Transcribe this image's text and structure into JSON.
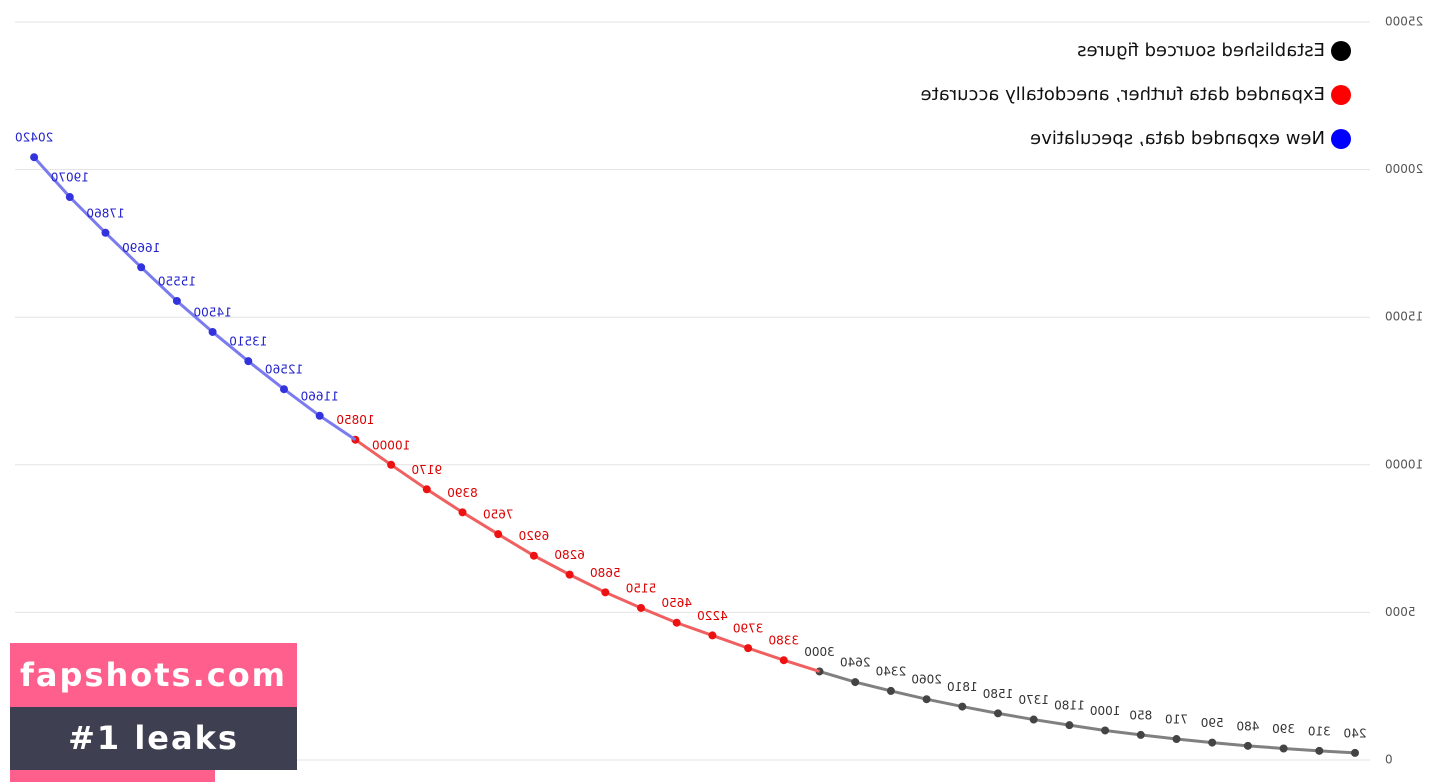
{
  "chart_data": {
    "type": "line",
    "ylim": [
      0,
      25000
    ],
    "yticks": [
      0,
      5000,
      10000,
      15000,
      20000,
      25000
    ],
    "grid": true,
    "series": [
      {
        "name": "Established sourced figures",
        "color": "#808080",
        "point_color": "#444444",
        "label_color": "#333333",
        "values": [
          240,
          310,
          390,
          480,
          590,
          710,
          850,
          1000,
          1180,
          1370,
          1580,
          1810,
          2060,
          2340,
          2640,
          3000,
          null,
          null,
          null,
          null,
          null,
          null,
          null,
          null,
          null,
          null,
          null,
          null,
          null,
          null,
          null,
          null,
          null,
          null,
          null,
          null,
          null,
          null
        ]
      },
      {
        "name": "Expanded data further, anecdotally accurate",
        "color": "#f06060",
        "point_color": "#ee1111",
        "label_color": "#dd0000",
        "values": [
          null,
          null,
          null,
          null,
          null,
          null,
          null,
          null,
          null,
          null,
          null,
          null,
          null,
          null,
          null,
          null,
          3380,
          3790,
          4220,
          4650,
          5150,
          5680,
          6280,
          6920,
          7650,
          8390,
          9170,
          10000,
          10850,
          null,
          null,
          null,
          null,
          null,
          null,
          null,
          null,
          null
        ]
      },
      {
        "name": "New expanded data, speculative",
        "color": "#7b7bf0",
        "point_color": "#3333dd",
        "label_color": "#2222cc",
        "values": [
          null,
          null,
          null,
          null,
          null,
          null,
          null,
          null,
          null,
          null,
          null,
          null,
          null,
          null,
          null,
          null,
          null,
          null,
          null,
          null,
          null,
          null,
          null,
          null,
          null,
          null,
          null,
          null,
          null,
          11660,
          12560,
          13510,
          14500,
          15550,
          16690,
          17860,
          19070,
          20420
        ]
      }
    ]
  },
  "watermark": {
    "line1": "fapshots.com",
    "line2": "#1 leaks"
  }
}
